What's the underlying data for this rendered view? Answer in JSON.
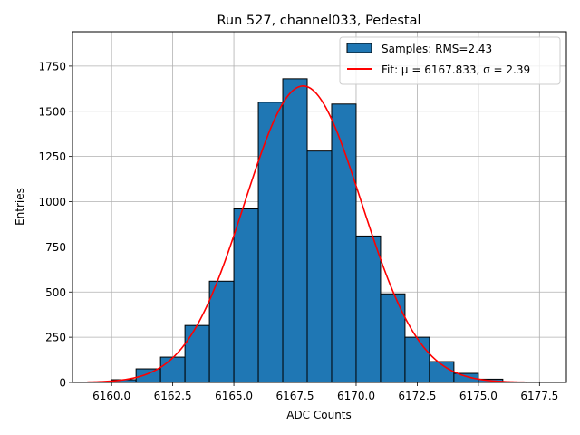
{
  "chart_data": {
    "type": "bar",
    "title": "Run 527, channel033, Pedestal",
    "xlabel": "ADC Counts",
    "ylabel": "Entries",
    "xlim": [
      6158.4,
      6178.6
    ],
    "ylim": [
      0,
      1940
    ],
    "xticks": [
      6160.0,
      6162.5,
      6165.0,
      6167.5,
      6170.0,
      6172.5,
      6175.0,
      6177.5
    ],
    "xtick_labels": [
      "6160.0",
      "6162.5",
      "6165.0",
      "6167.5",
      "6170.0",
      "6172.5",
      "6175.0",
      "6177.5"
    ],
    "yticks": [
      0,
      250,
      500,
      750,
      1000,
      1250,
      1500,
      1750
    ],
    "ytick_labels": [
      "0",
      "250",
      "500",
      "750",
      "1000",
      "1250",
      "1500",
      "1750"
    ],
    "grid": true,
    "legend_position": "top-right",
    "bins": {
      "edges": [
        6160,
        6161,
        6162,
        6163,
        6164,
        6165,
        6166,
        6167,
        6168,
        6169,
        6170,
        6171,
        6172,
        6173,
        6174,
        6175,
        6176
      ],
      "counts": [
        15,
        75,
        140,
        315,
        560,
        960,
        1550,
        1680,
        1280,
        1540,
        810,
        490,
        250,
        115,
        50,
        18
      ]
    },
    "fit": {
      "mu": 6167.833,
      "sigma": 2.39,
      "amplitude": 1640,
      "x_range": [
        6159,
        6177
      ]
    },
    "series": [
      {
        "name": "Samples: RMS=2.43",
        "kind": "histogram",
        "color": "#1f77b4",
        "edgecolor": "#000000"
      },
      {
        "name": "Fit: μ = 6167.833, σ = 2.39",
        "kind": "line",
        "color": "#ff0000"
      }
    ]
  }
}
